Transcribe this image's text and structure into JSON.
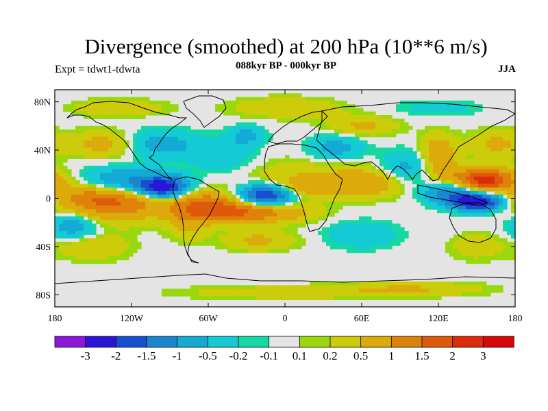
{
  "chart_data": {
    "type": "heatmap",
    "title": "Divergence (smoothed) at 200 hPa (10**6 m/s)",
    "subtitle": "088kyr BP - 000kyr BP",
    "left_label": "Expt = tdwt1-tdwta",
    "right_label": "JJA",
    "x_range": [
      -180,
      180
    ],
    "y_range": [
      -90,
      90
    ],
    "x_ticks": [
      {
        "value": -180,
        "label": "180"
      },
      {
        "value": -120,
        "label": "120W"
      },
      {
        "value": -60,
        "label": "60W"
      },
      {
        "value": 0,
        "label": "0"
      },
      {
        "value": 60,
        "label": "60E"
      },
      {
        "value": 120,
        "label": "120E"
      },
      {
        "value": 180,
        "label": "180"
      }
    ],
    "y_ticks": [
      {
        "value": 80,
        "label": "80N"
      },
      {
        "value": 40,
        "label": "40N"
      },
      {
        "value": 0,
        "label": "0"
      },
      {
        "value": -40,
        "label": "40S"
      },
      {
        "value": -80,
        "label": "80S"
      }
    ],
    "levels": [
      -3,
      -2,
      -1.5,
      -1,
      -0.5,
      -0.2,
      -0.1,
      0.1,
      0.2,
      0.5,
      1,
      1.5,
      2,
      3
    ],
    "level_labels": [
      "-3",
      "-2",
      "-1.5",
      "-1",
      "-0.5",
      "-0.2",
      "-0.1",
      "0.1",
      "0.2",
      "0.5",
      "1",
      "1.5",
      "2",
      "3"
    ],
    "colors": [
      "#8e16dc",
      "#2a16d6",
      "#1650d0",
      "#1a86d2",
      "#14aad6",
      "#14cad4",
      "#16d8a2",
      "#e4e4e4",
      "#9ad80e",
      "#cccc0a",
      "#dcaa0a",
      "#de820a",
      "#de5a0a",
      "#dc2a0a",
      "#d80808"
    ],
    "features": [
      {
        "lon": -95,
        "lat": 8,
        "amp": -2.6,
        "sx": 14,
        "sy": 7
      },
      {
        "lon": -128,
        "lat": 14,
        "amp": -1.0,
        "sx": 22,
        "sy": 8
      },
      {
        "lon": -115,
        "lat": 0,
        "amp": 1.0,
        "sx": 30,
        "sy": 7
      },
      {
        "lon": -155,
        "lat": 3,
        "amp": 0.7,
        "sx": 20,
        "sy": 8
      },
      {
        "lon": -140,
        "lat": -10,
        "amp": 0.9,
        "sx": 28,
        "sy": 9
      },
      {
        "lon": -165,
        "lat": -22,
        "amp": -1.0,
        "sx": 14,
        "sy": 8
      },
      {
        "lon": -60,
        "lat": -5,
        "amp": 1.2,
        "sx": 22,
        "sy": 8
      },
      {
        "lon": -75,
        "lat": -20,
        "amp": 0.6,
        "sx": 12,
        "sy": 10
      },
      {
        "lon": -15,
        "lat": 3,
        "amp": -2.3,
        "sx": 15,
        "sy": 6
      },
      {
        "lon": -25,
        "lat": -12,
        "amp": 1.3,
        "sx": 30,
        "sy": 6
      },
      {
        "lon": 10,
        "lat": 8,
        "amp": 0.7,
        "sx": 18,
        "sy": 6
      },
      {
        "lon": 20,
        "lat": 20,
        "amp": 0.4,
        "sx": 40,
        "sy": 10
      },
      {
        "lon": 65,
        "lat": 12,
        "amp": 0.8,
        "sx": 22,
        "sy": 8
      },
      {
        "lon": 95,
        "lat": 25,
        "amp": -0.7,
        "sx": 15,
        "sy": 10
      },
      {
        "lon": 155,
        "lat": 15,
        "amp": 2.3,
        "sx": 18,
        "sy": 7
      },
      {
        "lon": 130,
        "lat": 5,
        "amp": -1.4,
        "sx": 15,
        "sy": 6
      },
      {
        "lon": 150,
        "lat": -3,
        "amp": -2.6,
        "sx": 14,
        "sy": 5
      },
      {
        "lon": 120,
        "lat": 35,
        "amp": 1.0,
        "sx": 10,
        "sy": 12
      },
      {
        "lon": 165,
        "lat": 45,
        "amp": 0.6,
        "sx": 15,
        "sy": 8
      },
      {
        "lon": -100,
        "lat": 45,
        "amp": -0.8,
        "sx": 20,
        "sy": 8
      },
      {
        "lon": -140,
        "lat": 45,
        "amp": 0.7,
        "sx": 20,
        "sy": 8
      },
      {
        "lon": -50,
        "lat": 35,
        "amp": -0.5,
        "sx": 18,
        "sy": 10
      },
      {
        "lon": -30,
        "lat": 52,
        "amp": -0.6,
        "sx": 10,
        "sy": 6
      },
      {
        "lon": 40,
        "lat": 42,
        "amp": -0.7,
        "sx": 15,
        "sy": 8
      },
      {
        "lon": 60,
        "lat": 60,
        "amp": 0.6,
        "sx": 20,
        "sy": 6
      },
      {
        "lon": -130,
        "lat": 75,
        "amp": 0.5,
        "sx": 25,
        "sy": 5
      },
      {
        "lon": 0,
        "lat": 75,
        "amp": 0.5,
        "sx": 30,
        "sy": 6
      },
      {
        "lon": 120,
        "lat": 75,
        "amp": -0.3,
        "sx": 25,
        "sy": 5
      },
      {
        "lon": -150,
        "lat": -40,
        "amp": 0.5,
        "sx": 20,
        "sy": 8
      },
      {
        "lon": -20,
        "lat": -35,
        "amp": 0.6,
        "sx": 20,
        "sy": 6
      },
      {
        "lon": 60,
        "lat": -30,
        "amp": -0.5,
        "sx": 20,
        "sy": 8
      },
      {
        "lon": 150,
        "lat": -40,
        "amp": 0.4,
        "sx": 15,
        "sy": 8
      },
      {
        "lon": 0,
        "lat": -78,
        "amp": 0.4,
        "sx": 60,
        "sy": 4
      },
      {
        "lon": 100,
        "lat": -75,
        "amp": 0.5,
        "sx": 40,
        "sy": 4
      }
    ]
  }
}
